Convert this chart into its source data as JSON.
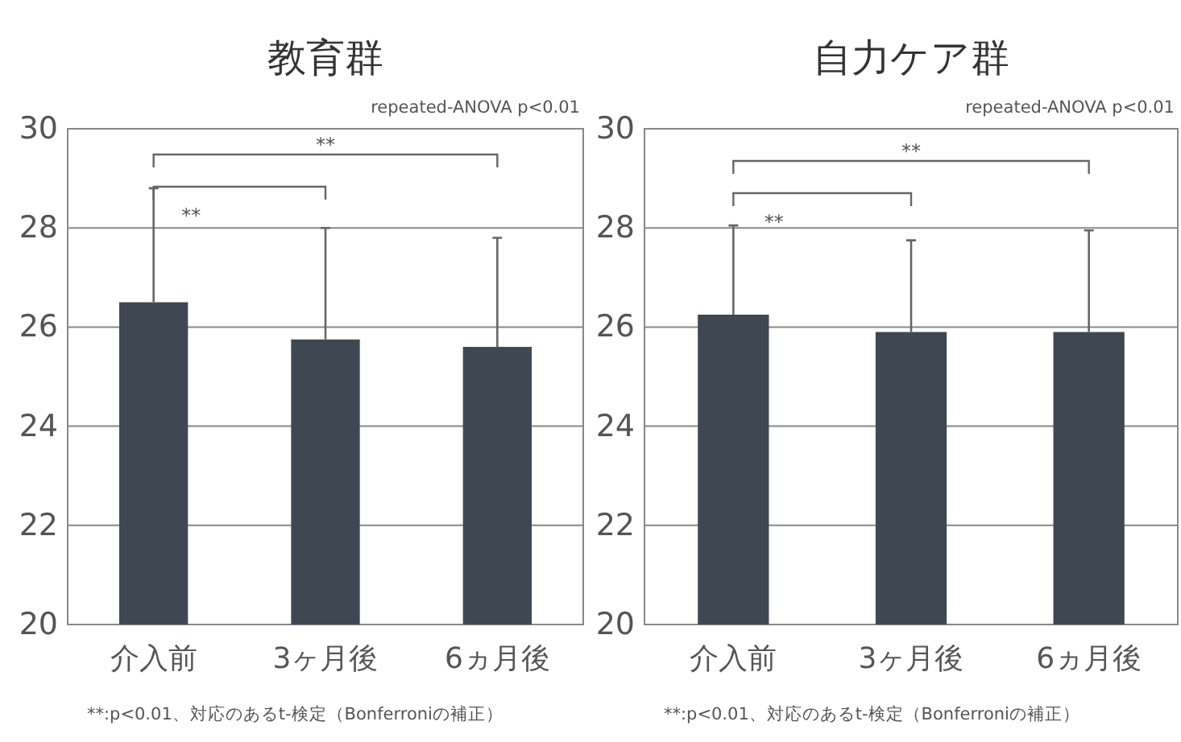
{
  "chart_data": [
    {
      "type": "bar",
      "title": "教育群",
      "categories": [
        "介入前",
        "3ヶ月後",
        "6ヵ月後"
      ],
      "values": [
        26.5,
        25.75,
        25.6
      ],
      "errors": [
        [
          26.5,
          28.8
        ],
        [
          25.75,
          28.0
        ],
        [
          25.6,
          27.8
        ]
      ],
      "color": "#3f4852",
      "ylim": [
        20,
        30
      ],
      "yticks": [
        20,
        22,
        24,
        26,
        28,
        30
      ],
      "grid": "y",
      "annotations": [
        "repeated-ANOVA p<0.01",
        "**",
        "**",
        "**:p<0.01、対応のあるt-検定（Bonferroniの補正）"
      ]
    },
    {
      "type": "bar",
      "title": "自力ケア群",
      "categories": [
        "介入前",
        "3ヶ月後",
        "6ヵ月後"
      ],
      "values": [
        26.25,
        25.9,
        25.9
      ],
      "errors": [
        [
          26.25,
          28.05
        ],
        [
          25.9,
          27.75
        ],
        [
          25.9,
          27.95
        ]
      ],
      "color": "#3f4852",
      "ylim": [
        20,
        30
      ],
      "yticks": [
        20,
        22,
        24,
        26,
        28,
        30
      ],
      "grid": "y",
      "annotations": [
        "repeated-ANOVA p<0.01",
        "**",
        "**",
        "**:p<0.01、対応のあるt-検定（Bonferroniの補正）"
      ]
    }
  ]
}
